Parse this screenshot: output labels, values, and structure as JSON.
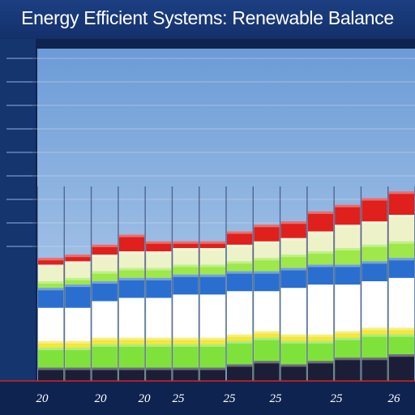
{
  "chart_data": {
    "type": "area",
    "title": "Energy Efficient Systems: Renewable Balance",
    "xlabel": "",
    "ylabel": "",
    "x_tick_labels": [
      "20",
      "20",
      "20",
      "25",
      "25",
      "25",
      "25",
      "26"
    ],
    "y_tick_labels": [],
    "grid": true,
    "legend": "none",
    "columns": 14,
    "stacked_bands": [
      {
        "color": "#e0201c",
        "values": [
          0.37,
          0.38,
          0.41,
          0.44,
          0.42,
          0.42,
          0.42,
          0.45,
          0.47,
          0.48,
          0.51,
          0.53,
          0.55,
          0.57
        ]
      },
      {
        "color": "#eef2c8",
        "values": [
          0.35,
          0.36,
          0.38,
          0.39,
          0.39,
          0.4,
          0.4,
          0.41,
          0.42,
          0.43,
          0.45,
          0.47,
          0.48,
          0.5
        ]
      },
      {
        "color": "#9ee84a",
        "values": [
          0.3,
          0.31,
          0.33,
          0.34,
          0.34,
          0.35,
          0.35,
          0.36,
          0.37,
          0.38,
          0.39,
          0.4,
          0.41,
          0.42
        ]
      },
      {
        "color": "#2a6fd0",
        "values": [
          0.28,
          0.29,
          0.3,
          0.31,
          0.31,
          0.32,
          0.32,
          0.33,
          0.33,
          0.34,
          0.35,
          0.35,
          0.36,
          0.37
        ]
      },
      {
        "color": "#ffffff",
        "values": [
          0.22,
          0.22,
          0.24,
          0.25,
          0.25,
          0.26,
          0.26,
          0.27,
          0.27,
          0.28,
          0.29,
          0.29,
          0.3,
          0.31
        ]
      },
      {
        "color": "#f4e63c",
        "values": [
          0.12,
          0.12,
          0.13,
          0.13,
          0.13,
          0.13,
          0.13,
          0.14,
          0.15,
          0.14,
          0.14,
          0.15,
          0.16,
          0.16
        ]
      },
      {
        "color": "#7fe23a",
        "values": [
          0.1,
          0.1,
          0.11,
          0.11,
          0.11,
          0.11,
          0.11,
          0.12,
          0.13,
          0.12,
          0.12,
          0.13,
          0.14,
          0.14
        ]
      },
      {
        "color": "#1b1e36",
        "values": [
          0.04,
          0.04,
          0.04,
          0.04,
          0.04,
          0.04,
          0.04,
          0.05,
          0.06,
          0.05,
          0.06,
          0.07,
          0.07,
          0.08
        ]
      }
    ],
    "colors": {
      "background_top": "#6b9bd6",
      "background_bottom": "#bcd3ee",
      "frame": "#0e2350",
      "axis_text": "#ffffff"
    }
  }
}
